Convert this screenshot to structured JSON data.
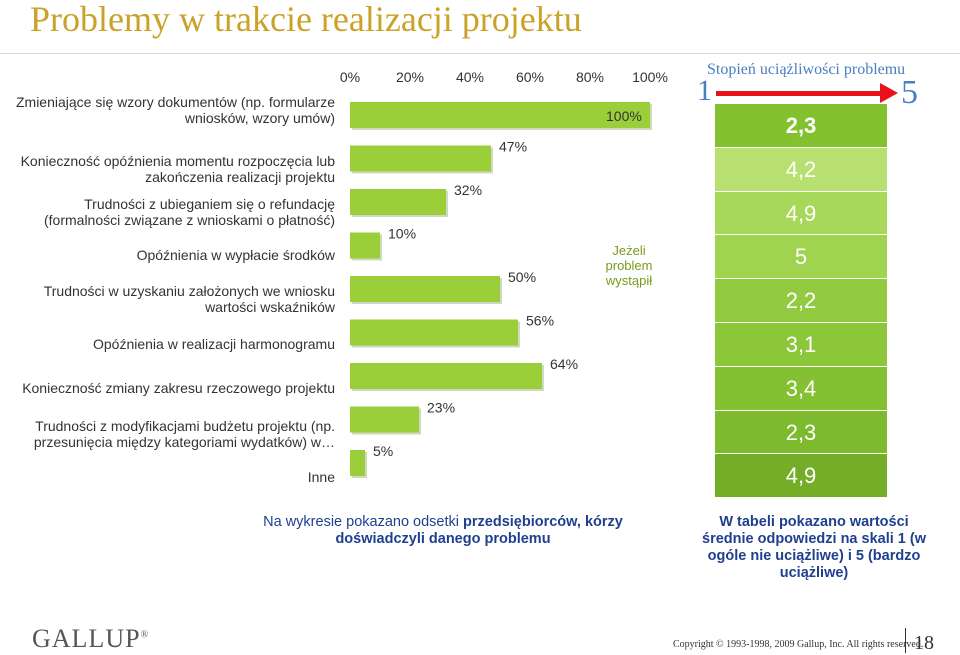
{
  "title": "Problemy w trakcie realizacji projektu",
  "chart_data": {
    "type": "bar",
    "orientation": "horizontal",
    "x_ticks": [
      "0%",
      "20%",
      "40%",
      "60%",
      "80%",
      "100%"
    ],
    "xlim": [
      0,
      100
    ],
    "categories": [
      "Zmieniające się wzory dokumentów (np. formularze wniosków, wzory umów)",
      "Konieczność opóźnienia momentu rozpoczęcia lub zakończenia realizacji projektu",
      "Trudności z ubieganiem się o refundację (formalności związane z wnioskami o płatność)",
      "Opóźnienia w wypłacie środków",
      "Trudności w uzyskaniu założonych we wniosku wartości wskaźników",
      "Opóźnienia w realizacji harmonogramu",
      "Konieczność zmiany zakresu rzeczowego projektu",
      "Trudności z modyfikacjami budżetu projektu (np. przesunięcia między kategoriami wydatków) w…",
      "Inne"
    ],
    "values": [
      100,
      47,
      32,
      10,
      50,
      56,
      64,
      23,
      5
    ],
    "value_labels": [
      "100%",
      "47%",
      "32%",
      "10%",
      "50%",
      "56%",
      "64%",
      "23%",
      "5%"
    ],
    "bar_color": "#9bcf3a"
  },
  "note_if_occurred": "Jeżeli problem wystąpił",
  "severity_scale": {
    "title": "Stopień uciążliwości problemu",
    "min_label": "1",
    "max_label": "5",
    "values": [
      "2,3",
      "4,2",
      "4,9",
      "5",
      "2,2",
      "3,1",
      "3,4",
      "2,3",
      "4,9"
    ],
    "arrow_color": "#e8111c",
    "row_colors": [
      "#84c12e",
      "#b7e070",
      "#a8d85a",
      "#a0d450",
      "#92cb40",
      "#8cc73a",
      "#84c132",
      "#7eba2e",
      "#74ad27"
    ]
  },
  "caption_left": {
    "text_a": "Na wykresie pokazano odsetki",
    "text_b": "przedsiębiorców, kórzy doświadczyli danego problemu"
  },
  "caption_right": "W tabeli pokazano wartości średnie odpowiedzi na skali 1 (w ogóle nie uciążliwe) i 5 (bardzo uciążliwe)",
  "logo": "GALLUP",
  "copyright": "Copyright © 1993-1998, 2009 Gallup, Inc. All rights reserved.",
  "page_number": "18"
}
